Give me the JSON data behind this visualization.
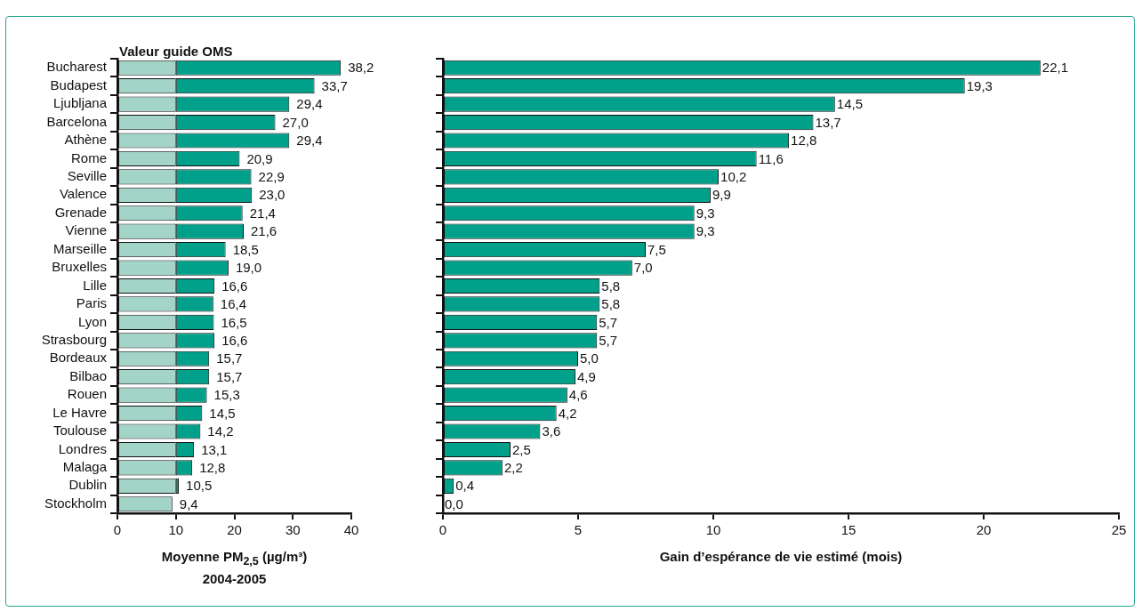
{
  "chart_data": [
    {
      "type": "bar",
      "orientation": "horizontal",
      "stacked": true,
      "xlabel": "Moyenne PM$_{2,5}$ (µg/m³)\n2004-2005",
      "categories": [
        "Bucharest",
        "Budapest",
        "Ljubljana",
        "Barcelona",
        "Athène",
        "Rome",
        "Seville",
        "Valence",
        "Grenade",
        "Vienne",
        "Marseille",
        "Bruxelles",
        "Lille",
        "Paris",
        "Lyon",
        "Strasbourg",
        "Bordeaux",
        "Bilbao",
        "Rouen",
        "Le Havre",
        "Toulouse",
        "Londres",
        "Malaga",
        "Dublin",
        "Stockholm"
      ],
      "series": [
        {
          "name": "Valeur guide OMS",
          "color": "#a3d4c8",
          "values": [
            10,
            10,
            10,
            10,
            10,
            10,
            10,
            10,
            10,
            10,
            10,
            10,
            10,
            10,
            10,
            10,
            10,
            10,
            10,
            10,
            10,
            10,
            10,
            10,
            9.4
          ]
        },
        {
          "color": "#00a08a",
          "values": [
            28.2,
            23.7,
            19.4,
            17.0,
            19.4,
            10.9,
            12.9,
            13.0,
            11.4,
            11.6,
            8.5,
            9.0,
            6.6,
            6.4,
            6.5,
            6.6,
            5.7,
            5.7,
            5.3,
            4.5,
            4.2,
            3.1,
            2.8,
            0.5,
            null
          ]
        }
      ],
      "totals": [
        "38,2",
        "33,7",
        "29,4",
        "27,0",
        "29,4",
        "20,9",
        "22,9",
        "23,0",
        "21,4",
        "21,6",
        "18,5",
        "19,0",
        "16,6",
        "16,4",
        "16,5",
        "16,6",
        "15,7",
        "15,7",
        "15,3",
        "14,5",
        "14,2",
        "13,1",
        "12,8",
        "10,5",
        "9,4"
      ],
      "xlim": [
        0,
        40
      ],
      "xticks": [
        0,
        10,
        20,
        30,
        40
      ]
    },
    {
      "type": "bar",
      "orientation": "horizontal",
      "xlabel": "Gain d’espérance de vie estimé (mois)",
      "tick_labels": "x",
      "categories": [
        null,
        null,
        null,
        null,
        null,
        null,
        null,
        null,
        null,
        null,
        null,
        null,
        null,
        null,
        null,
        null,
        null,
        null,
        null,
        null,
        null,
        null,
        null,
        null,
        null
      ],
      "color": "#00a08a",
      "values": [
        22.1,
        19.3,
        14.5,
        13.7,
        12.8,
        11.6,
        10.2,
        9.9,
        9.3,
        9.3,
        7.5,
        7.0,
        5.8,
        5.8,
        5.7,
        5.7,
        5.0,
        4.9,
        4.6,
        4.2,
        3.6,
        2.5,
        2.2,
        0.4,
        0.0
      ],
      "value_labels": [
        "22,1",
        "19,3",
        "14,5",
        "13,7",
        "12,8",
        "11,6",
        "10,2",
        "9,9",
        "9,3",
        "9,3",
        "7,5",
        "7,0",
        "5,8",
        "5,8",
        "5,7",
        "5,7",
        "5,0",
        "4,9",
        "4,6",
        "4,2",
        "3,6",
        "2,5",
        "2,2",
        "0,4",
        "0,0"
      ],
      "xlim": [
        0,
        25
      ],
      "xticks": [
        0,
        5,
        10,
        15,
        20,
        25
      ]
    }
  ]
}
